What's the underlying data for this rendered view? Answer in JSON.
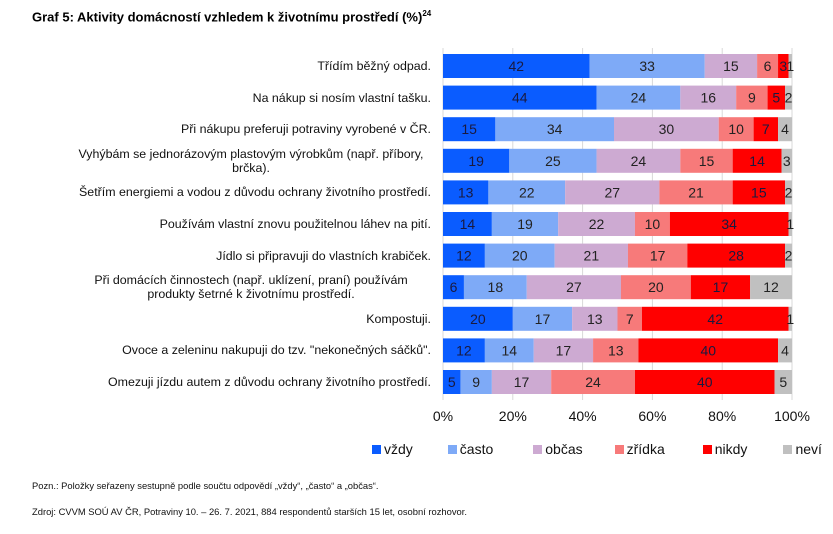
{
  "title": "Graf 5: Aktivity domácností vzhledem k životnímu prostředí (%)",
  "title_sup": "24",
  "note": "Pozn.: Položky seřazeny sestupně podle součtu odpovědí „vždy“, „často“ a „občas“.",
  "source": "Zdroj: CVVM SOÚ AV ČR, Potraviny 10. – 26. 7. 2021, 884 respondentů starších 15 let, osobní rozhovor.",
  "chart_data": {
    "type": "bar",
    "orientation": "horizontal",
    "stacked": "percent",
    "title": "Graf 5: Aktivity domácností vzhledem k životnímu prostředí (%)",
    "xlabel": "",
    "ylabel": "",
    "xlim": [
      0,
      100
    ],
    "xticks": [
      "0%",
      "20%",
      "40%",
      "60%",
      "80%",
      "100%"
    ],
    "grid": "vertical",
    "legend_position": "bottom",
    "categories": [
      "Třídím běžný odpad.",
      "Na nákup si nosím vlastní tašku.",
      "Při nákupu preferuji potraviny vyrobené v ČR.",
      "Vyhýbám se jednorázovým plastovým výrobkům (např. příbory, brčka).",
      "Šetřím energiemi a vodou z důvodu ochrany životního prostředí.",
      "Používám vlastní znovu použitelnou láhev na pití.",
      "Jídlo si připravuji do vlastních krabiček.",
      "Při domácích činnostech (např. uklízení, praní) používám produkty šetrné k životnímu prostředí.",
      "Kompostuji.",
      "Ovoce a zeleninu nakupuji do tzv. \"nekonečných sáčků\".",
      "Omezuji jízdu autem z důvodu ochrany životního prostředí."
    ],
    "series": [
      {
        "name": "vždy",
        "color": "#0a5cff",
        "values": [
          42,
          44,
          15,
          19,
          13,
          14,
          12,
          6,
          20,
          12,
          5
        ]
      },
      {
        "name": "často",
        "color": "#7eaaf7",
        "values": [
          33,
          24,
          34,
          25,
          22,
          19,
          20,
          18,
          17,
          14,
          9
        ]
      },
      {
        "name": "občas",
        "color": "#cdaad2",
        "values": [
          15,
          16,
          30,
          24,
          27,
          22,
          21,
          27,
          13,
          17,
          17
        ]
      },
      {
        "name": "zřídka",
        "color": "#f77a7a",
        "values": [
          6,
          9,
          10,
          15,
          21,
          10,
          17,
          20,
          7,
          13,
          24
        ]
      },
      {
        "name": "nikdy",
        "color": "#ff0000",
        "values": [
          3,
          5,
          7,
          14,
          15,
          34,
          28,
          17,
          42,
          40,
          40
        ]
      },
      {
        "name": "neví",
        "color": "#c0c0c0",
        "values": [
          1,
          2,
          4,
          3,
          2,
          1,
          2,
          12,
          1,
          4,
          5
        ]
      }
    ]
  }
}
